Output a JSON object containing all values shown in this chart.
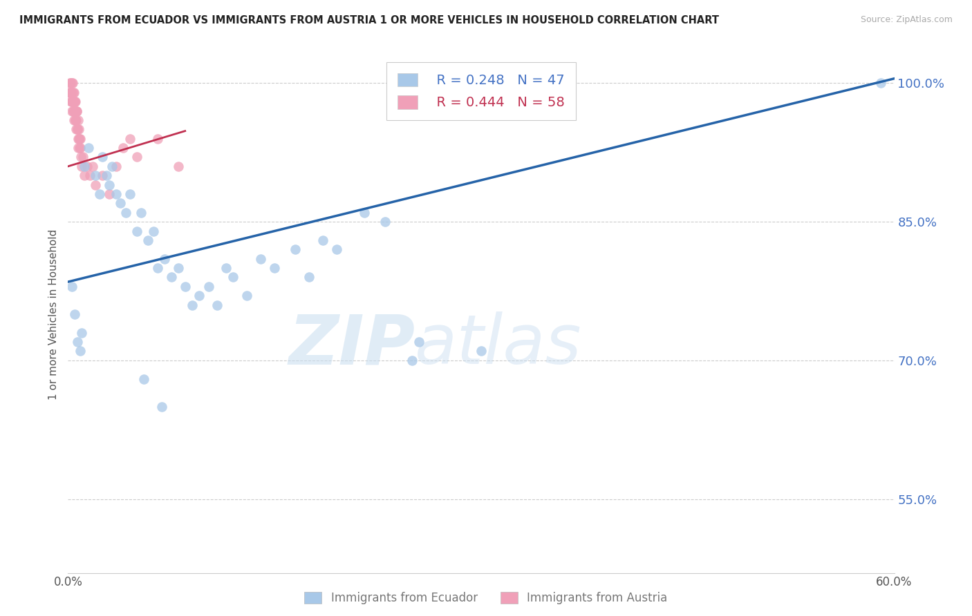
{
  "title": "IMMIGRANTS FROM ECUADOR VS IMMIGRANTS FROM AUSTRIA 1 OR MORE VEHICLES IN HOUSEHOLD CORRELATION CHART",
  "source": "Source: ZipAtlas.com",
  "ylabel": "1 or more Vehicles in Household",
  "xlim": [
    0.0,
    60.0
  ],
  "ylim": [
    47.0,
    103.0
  ],
  "xticks": [
    0.0,
    10.0,
    20.0,
    30.0,
    40.0,
    50.0,
    60.0
  ],
  "yticks": [
    55.0,
    70.0,
    85.0,
    100.0
  ],
  "ytick_labels": [
    "55.0%",
    "70.0%",
    "85.0%",
    "100.0%"
  ],
  "xtick_labels": [
    "0.0%",
    "",
    "",
    "",
    "",
    "",
    "60.0%"
  ],
  "ecuador_color": "#a8c8e8",
  "austria_color": "#f0a0b8",
  "ecuador_R": 0.248,
  "ecuador_N": 47,
  "austria_R": 0.444,
  "austria_N": 58,
  "trend_ecuador_color": "#2563a8",
  "trend_austria_color": "#c03050",
  "legend_label_ecuador": "Immigrants from Ecuador",
  "legend_label_austria": "Immigrants from Austria",
  "watermark_zip": "ZIP",
  "watermark_atlas": "atlas",
  "ecuador_x": [
    1.2,
    1.5,
    2.0,
    2.3,
    2.5,
    2.8,
    3.0,
    3.2,
    3.5,
    3.8,
    4.2,
    4.5,
    5.0,
    5.3,
    5.8,
    6.2,
    6.5,
    7.0,
    7.5,
    8.0,
    8.5,
    9.0,
    9.5,
    10.2,
    10.8,
    11.5,
    12.0,
    13.0,
    14.0,
    15.0,
    16.5,
    17.5,
    18.5,
    19.5,
    21.5,
    23.0,
    0.3,
    0.5,
    0.7,
    0.9,
    1.0,
    25.0,
    30.0,
    59.0,
    25.5,
    5.5,
    6.8
  ],
  "ecuador_y": [
    91.0,
    93.0,
    90.0,
    88.0,
    92.0,
    90.0,
    89.0,
    91.0,
    88.0,
    87.0,
    86.0,
    88.0,
    84.0,
    86.0,
    83.0,
    84.0,
    80.0,
    81.0,
    79.0,
    80.0,
    78.0,
    76.0,
    77.0,
    78.0,
    76.0,
    80.0,
    79.0,
    77.0,
    81.0,
    80.0,
    82.0,
    79.0,
    83.0,
    82.0,
    86.0,
    85.0,
    78.0,
    75.0,
    72.0,
    71.0,
    73.0,
    70.0,
    71.0,
    100.0,
    72.0,
    68.0,
    65.0
  ],
  "austria_x": [
    0.1,
    0.15,
    0.2,
    0.22,
    0.25,
    0.28,
    0.3,
    0.32,
    0.35,
    0.38,
    0.4,
    0.42,
    0.45,
    0.48,
    0.5,
    0.52,
    0.55,
    0.58,
    0.6,
    0.65,
    0.7,
    0.72,
    0.75,
    0.8,
    0.82,
    0.85,
    0.88,
    0.9,
    0.95,
    1.0,
    1.1,
    1.2,
    1.4,
    1.6,
    1.8,
    2.0,
    2.5,
    3.0,
    3.5,
    4.0,
    5.0,
    6.5,
    8.0,
    0.12,
    0.18,
    0.23,
    0.27,
    0.33,
    0.37,
    0.43,
    0.47,
    0.53,
    0.57,
    0.63,
    0.67,
    0.73,
    0.77,
    4.5
  ],
  "austria_y": [
    99.0,
    100.0,
    100.0,
    99.0,
    98.0,
    100.0,
    99.0,
    98.0,
    100.0,
    99.0,
    97.0,
    98.0,
    99.0,
    98.0,
    97.0,
    98.0,
    96.0,
    97.0,
    96.0,
    97.0,
    95.0,
    96.0,
    94.0,
    95.0,
    94.0,
    93.0,
    94.0,
    93.0,
    92.0,
    91.0,
    92.0,
    90.0,
    91.0,
    90.0,
    91.0,
    89.0,
    90.0,
    88.0,
    91.0,
    93.0,
    92.0,
    94.0,
    91.0,
    99.0,
    99.0,
    98.0,
    97.0,
    98.0,
    97.0,
    96.0,
    98.0,
    96.0,
    95.0,
    97.0,
    95.0,
    93.0,
    94.0,
    94.0
  ]
}
